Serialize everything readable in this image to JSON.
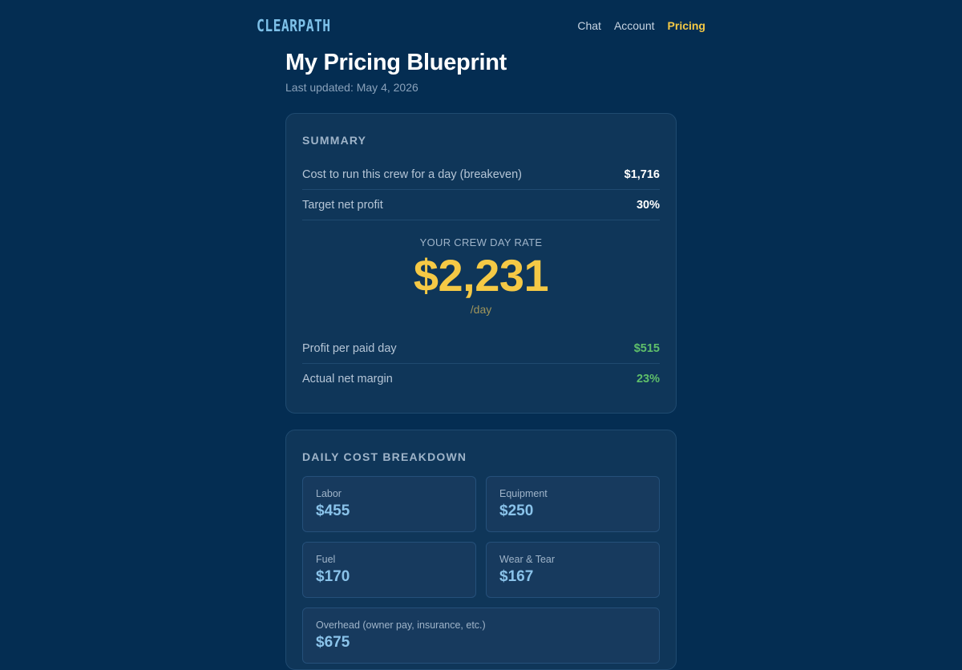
{
  "header": {
    "logo": "CLEARPATH",
    "nav": [
      {
        "label": "Chat",
        "active": false
      },
      {
        "label": "Account",
        "active": false
      },
      {
        "label": "Pricing",
        "active": true
      }
    ]
  },
  "page": {
    "title": "My Pricing Blueprint",
    "updated": "Last updated: May 4, 2026"
  },
  "summary": {
    "heading": "SUMMARY",
    "rows_top": [
      {
        "label": "Cost to run this crew for a day (breakeven)",
        "value": "$1,716"
      },
      {
        "label": "Target net profit",
        "value": "30%"
      }
    ],
    "rate": {
      "label": "YOUR CREW DAY RATE",
      "value": "$2,231",
      "unit": "/day"
    },
    "rows_bottom": [
      {
        "label": "Profit per paid day",
        "value": "$515"
      },
      {
        "label": "Actual net margin",
        "value": "23%"
      }
    ]
  },
  "breakdown": {
    "heading": "DAILY COST BREAKDOWN",
    "items": [
      {
        "label": "Labor",
        "value": "$455"
      },
      {
        "label": "Equipment",
        "value": "$250"
      },
      {
        "label": "Fuel",
        "value": "$170"
      },
      {
        "label": "Wear & Tear",
        "value": "$167"
      },
      {
        "label": "Overhead (owner pay, insurance, etc.)",
        "value": "$675"
      }
    ]
  },
  "colors": {
    "background": "#042d52",
    "accent_yellow": "#f5c945",
    "positive_green": "#5fbf6a",
    "tile_value_blue": "#8ac3ea"
  }
}
